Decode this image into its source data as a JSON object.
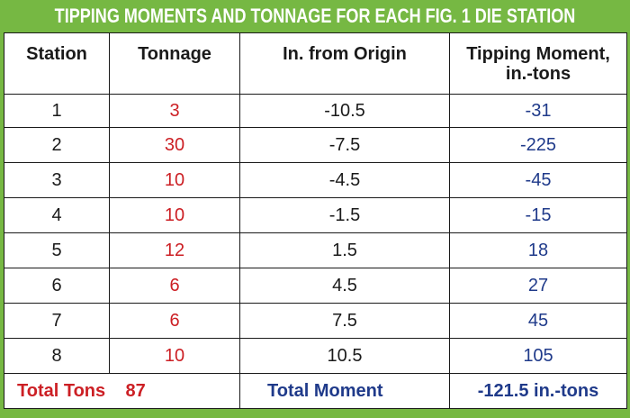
{
  "title": "TIPPING MOMENTS AND TONNAGE FOR EACH FIG. 1 DIE STATION",
  "colors": {
    "frame": "#76b843",
    "red": "#cc1f24",
    "blue": "#1f3a8a"
  },
  "headers": {
    "station": "Station",
    "tonnage": "Tonnage",
    "origin": "In. from Origin",
    "moment_line1": "Tipping Moment,",
    "moment_line2": "in.-tons"
  },
  "rows": [
    {
      "station": "1",
      "tonnage": "3",
      "origin": "-10.5",
      "moment": "-31"
    },
    {
      "station": "2",
      "tonnage": "30",
      "origin": "-7.5",
      "moment": "-225"
    },
    {
      "station": "3",
      "tonnage": "10",
      "origin": "-4.5",
      "moment": "-45"
    },
    {
      "station": "4",
      "tonnage": "10",
      "origin": "-1.5",
      "moment": "-15"
    },
    {
      "station": "5",
      "tonnage": "12",
      "origin": "1.5",
      "moment": "18"
    },
    {
      "station": "6",
      "tonnage": "6",
      "origin": "4.5",
      "moment": "27"
    },
    {
      "station": "7",
      "tonnage": "6",
      "origin": "7.5",
      "moment": "45"
    },
    {
      "station": "8",
      "tonnage": "10",
      "origin": "10.5",
      "moment": "105"
    }
  ],
  "totals": {
    "tons_label": "Total Tons",
    "tons_value": "87",
    "moment_label": "Total Moment",
    "moment_value": "-121.5 in.-tons"
  }
}
